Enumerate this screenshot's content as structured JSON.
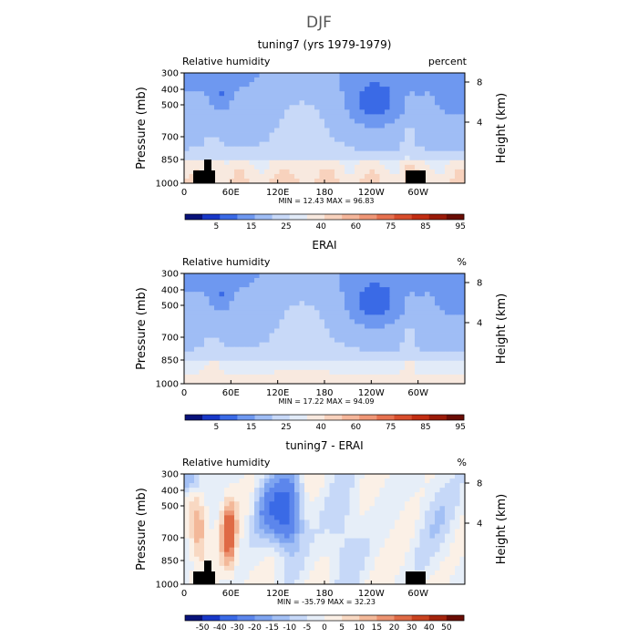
{
  "suptitle": "DJF",
  "chart_data": [
    {
      "type": "heatmap",
      "title": "tuning7 (yrs 1979-1979)",
      "left_label": "Relative humidity",
      "right_label": "percent",
      "ylabel": "Pressure (mb)",
      "y2label": "Height (km)",
      "y_ticks": [
        "300",
        "400",
        "500",
        "700",
        "850",
        "1000"
      ],
      "y2_ticks": [
        "8",
        "4"
      ],
      "x_ticks": [
        "0",
        "60E",
        "120E",
        "180",
        "120W",
        "60W"
      ],
      "stats": "MIN =   12.43   MAX =   96.83",
      "colorbar": {
        "labels": [
          "5",
          "15",
          "25",
          "40",
          "60",
          "75",
          "85",
          "95"
        ],
        "colors": [
          "#08127a",
          "#1838c8",
          "#3a6ae6",
          "#6e98f0",
          "#9fbdf5",
          "#c8d9f8",
          "#e2ebf8",
          "#f8e9df",
          "#f8d2bd",
          "#f5b69a",
          "#ef9676",
          "#e6714f",
          "#d84d2c",
          "#c22d12",
          "#9a1a08",
          "#6a0c04"
        ]
      }
    },
    {
      "type": "heatmap",
      "title": "ERAI",
      "left_label": "Relative humidity",
      "right_label": "%",
      "ylabel": "Pressure (mb)",
      "y2label": "Height (km)",
      "y_ticks": [
        "300",
        "400",
        "500",
        "700",
        "850",
        "1000"
      ],
      "y2_ticks": [
        "8",
        "4"
      ],
      "x_ticks": [
        "0",
        "60E",
        "120E",
        "180",
        "120W",
        "60W"
      ],
      "stats": "MIN =   17.22   MAX =   94.09",
      "colorbar": {
        "labels": [
          "5",
          "15",
          "25",
          "40",
          "60",
          "75",
          "85",
          "95"
        ],
        "colors": [
          "#08127a",
          "#1838c8",
          "#3a6ae6",
          "#6e98f0",
          "#9fbdf5",
          "#c8d9f8",
          "#e2ebf8",
          "#f8e9df",
          "#f8d2bd",
          "#f5b69a",
          "#ef9676",
          "#e6714f",
          "#d84d2c",
          "#c22d12",
          "#9a1a08",
          "#6a0c04"
        ]
      }
    },
    {
      "type": "heatmap",
      "title": "tuning7 - ERAI",
      "left_label": "Relative humidity",
      "right_label": "%",
      "ylabel": "Pressure (mb)",
      "y2label": "Height (km)",
      "y_ticks": [
        "300",
        "400",
        "500",
        "700",
        "850",
        "1000"
      ],
      "y2_ticks": [
        "8",
        "4"
      ],
      "x_ticks": [
        "0",
        "60E",
        "120E",
        "180",
        "120W",
        "60W"
      ],
      "stats": "MIN =  -35.79   MAX =   32.23",
      "colorbar": {
        "labels": [
          "-50",
          "-40",
          "-30",
          "-20",
          "-15",
          "-10",
          "-5",
          "0",
          "5",
          "10",
          "15",
          "20",
          "30",
          "40",
          "50"
        ],
        "colors": [
          "#08127a",
          "#1838c8",
          "#3a6ae6",
          "#5c86ec",
          "#7ea4f0",
          "#a3c0f5",
          "#c6d8f8",
          "#e6eef8",
          "#fbf0e6",
          "#f8d8c2",
          "#f3b899",
          "#ec9371",
          "#df6a45",
          "#c9421f",
          "#a3240c",
          "#6a0c04"
        ]
      }
    }
  ]
}
